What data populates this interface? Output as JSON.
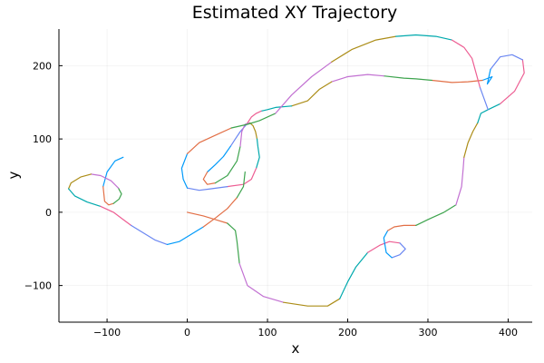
{
  "chart_data": {
    "type": "line",
    "title": "Estimated XY Trajectory",
    "xlabel": "x",
    "ylabel": "y",
    "xlim": [
      -160,
      430
    ],
    "ylim": [
      -150,
      250
    ],
    "xticks": [
      -100,
      0,
      100,
      200,
      300,
      400
    ],
    "yticks": [
      -100,
      0,
      100,
      200
    ],
    "xtick_labels": [
      "−100",
      "0",
      "100",
      "200",
      "300",
      "400"
    ],
    "ytick_labels": [
      "−100",
      "0",
      "100",
      "200"
    ],
    "grid": true,
    "legend": "none",
    "palette": [
      "#009AFA",
      "#E26F46",
      "#3EA44E",
      "#C271D2",
      "#AC8D18",
      "#00A9AD",
      "#ED5E93",
      "#6B87F2"
    ],
    "series": [
      {
        "x": [
          0,
          20,
          35,
          50,
          60,
          62,
          65,
          75,
          95,
          120,
          150,
          175,
          190,
          200,
          210,
          225,
          240,
          252,
          265,
          272,
          265,
          255,
          248,
          245,
          250,
          258,
          270,
          285,
          300,
          320,
          335,
          342,
          344,
          345,
          350,
          356,
          362,
          366,
          375,
          390,
          408,
          420,
          418,
          405,
          390,
          378,
          374,
          380,
          368,
          350,
          330,
          305,
          285,
          270,
          245,
          225,
          200,
          180,
          165,
          150,
          130,
          110,
          100,
          92,
          86,
          80,
          74,
          66,
          60,
          54,
          45,
          35,
          25,
          20,
          25,
          35,
          50,
          62,
          66,
          68,
          72,
          78,
          82,
          85,
          87,
          88,
          90,
          86,
          80,
          70,
          50,
          30,
          15,
          0,
          -5,
          -7,
          0,
          15,
          35,
          55,
          75,
          90,
          110,
          130,
          155,
          180,
          205,
          235,
          260,
          285,
          310,
          330,
          345,
          355,
          365,
          375
        ],
        "y": [
          0,
          -5,
          -10,
          -15,
          -25,
          -40,
          -70,
          -100,
          -115,
          -123,
          -128,
          -128,
          -118,
          -95,
          -75,
          -55,
          -45,
          -40,
          -42,
          -50,
          -58,
          -62,
          -55,
          -35,
          -25,
          -20,
          -18,
          -18,
          -10,
          0,
          10,
          35,
          60,
          75,
          95,
          110,
          122,
          135,
          140,
          148,
          165,
          190,
          208,
          215,
          212,
          195,
          175,
          185,
          180,
          178,
          177,
          180,
          182,
          183,
          186,
          188,
          185,
          178,
          168,
          152,
          145,
          143,
          140,
          138,
          135,
          130,
          120,
          110,
          100,
          90,
          76,
          65,
          55,
          45,
          38,
          40,
          50,
          70,
          90,
          110,
          120,
          122,
          118,
          110,
          100,
          90,
          75,
          60,
          45,
          38,
          35,
          32,
          30,
          33,
          45,
          60,
          80,
          95,
          105,
          115,
          120,
          125,
          135,
          160,
          185,
          205,
          222,
          235,
          240,
          242,
          240,
          235,
          225,
          210,
          170,
          140
        ]
      }
    ],
    "segments": [
      {
        "color_index": 0,
        "points": [
          [
            -80,
            75
          ],
          [
            -90,
            70
          ],
          [
            -100,
            55
          ],
          [
            -105,
            35
          ],
          [
            -103,
            15
          ],
          [
            -98,
            10
          ],
          [
            -92,
            12
          ],
          [
            -85,
            18
          ],
          [
            -82,
            25
          ],
          [
            -86,
            33
          ],
          [
            -95,
            43
          ],
          [
            -108,
            50
          ],
          [
            -120,
            52
          ],
          [
            -133,
            48
          ],
          [
            -145,
            40
          ],
          [
            -148,
            32
          ],
          [
            -140,
            22
          ],
          [
            -125,
            14
          ],
          [
            -108,
            8
          ],
          [
            -92,
            0
          ],
          [
            -80,
            -10
          ],
          [
            -70,
            -18
          ],
          [
            -55,
            -28
          ],
          [
            -40,
            -38
          ],
          [
            -25,
            -44
          ],
          [
            -10,
            -40
          ],
          [
            5,
            -30
          ],
          [
            20,
            -20
          ],
          [
            35,
            -8
          ],
          [
            50,
            5
          ],
          [
            62,
            20
          ],
          [
            70,
            35
          ],
          [
            72,
            55
          ]
        ]
      }
    ]
  }
}
